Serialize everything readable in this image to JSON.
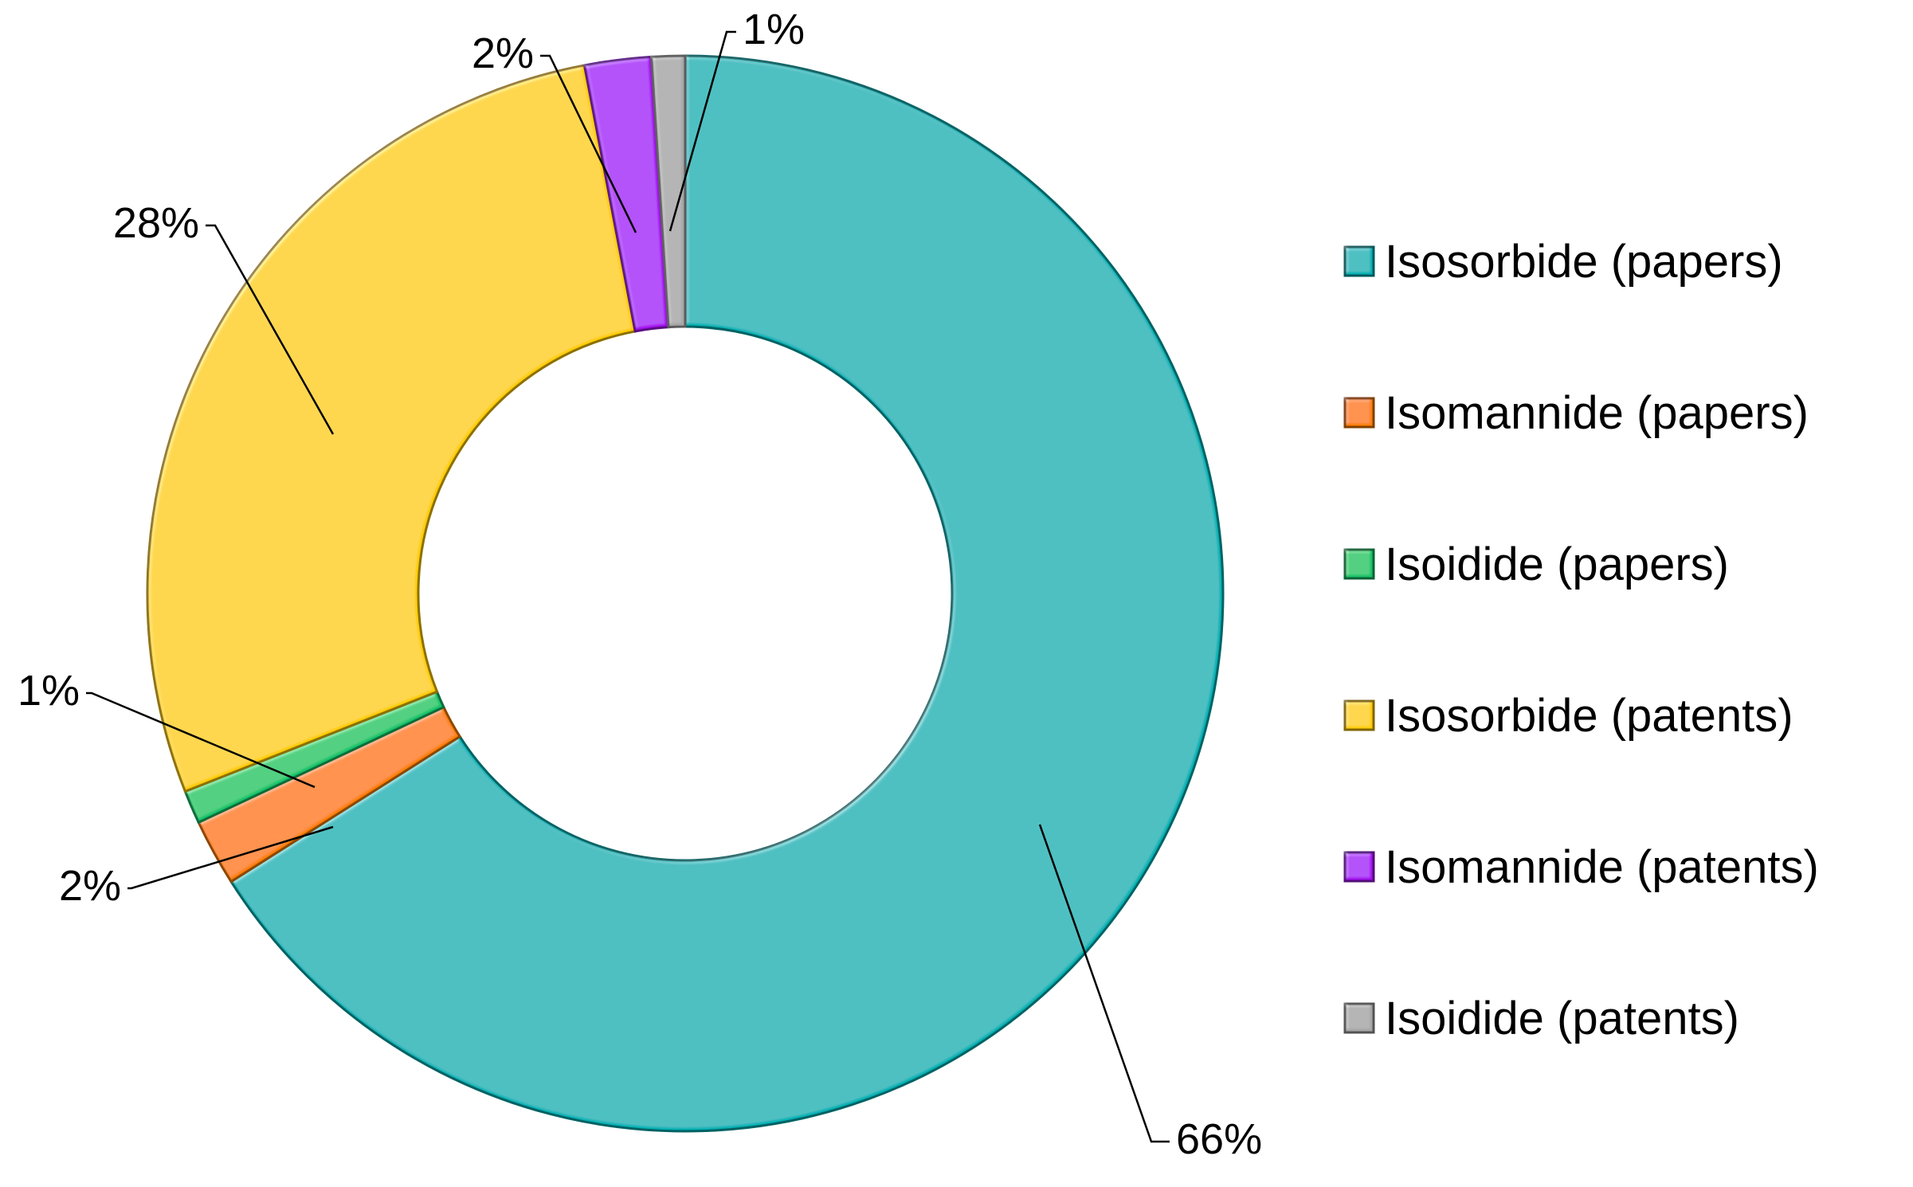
{
  "chart_data": {
    "type": "pie",
    "variant": "donut",
    "title": "",
    "legend_position": "right",
    "series": [
      {
        "name": "Isosorbide (papers)",
        "value": 66,
        "label": "66%",
        "color": "#00B2B5"
      },
      {
        "name": "Isomannide (papers)",
        "value": 2,
        "label": "2%",
        "color": "#FF7F00"
      },
      {
        "name": "Isoidide (papers)",
        "value": 1,
        "label": "1%",
        "color": "#12C46A"
      },
      {
        "name": "Isosorbide (patents)",
        "value": 28,
        "label": "28%",
        "color": "#FFCC00"
      },
      {
        "name": "Isomannide (patents)",
        "value": 2,
        "label": "2%",
        "color": "#A510F0"
      },
      {
        "name": "Isoidide (patents)",
        "value": 1,
        "label": "1%",
        "color": "#A6A6A6"
      }
    ]
  }
}
